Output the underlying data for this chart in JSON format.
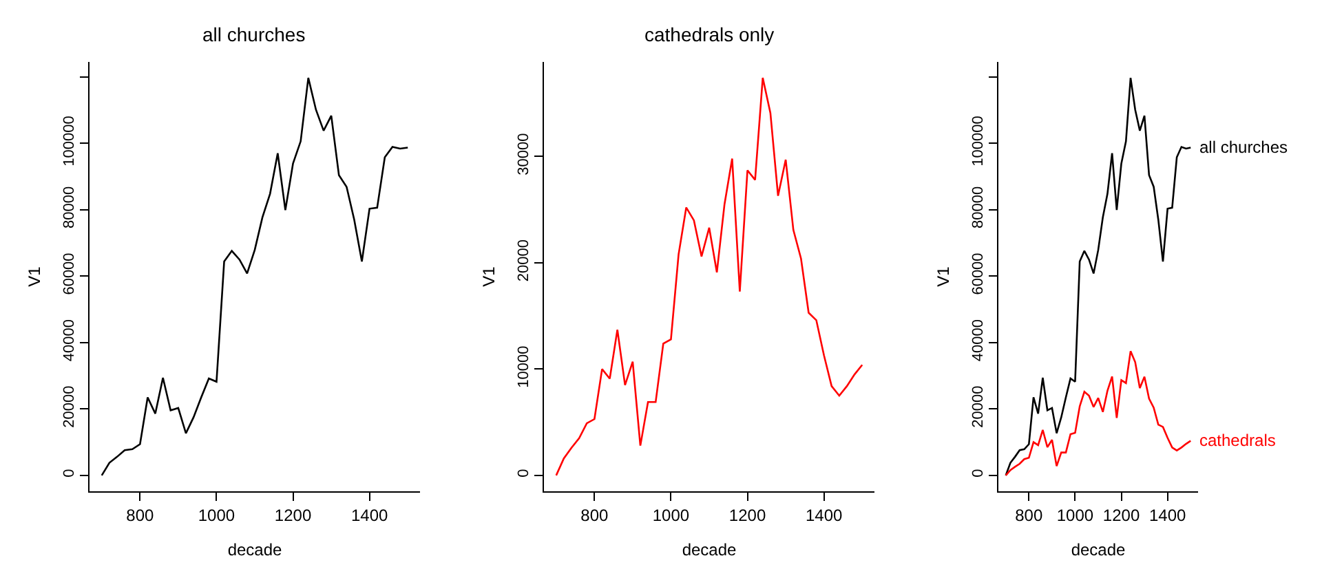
{
  "chart_data": [
    {
      "type": "line",
      "title": "all churches",
      "xlabel": "decade",
      "ylabel": "V1",
      "x": [
        700,
        720,
        740,
        760,
        780,
        800,
        820,
        840,
        860,
        880,
        900,
        920,
        940,
        960,
        980,
        1000,
        1020,
        1040,
        1060,
        1080,
        1100,
        1120,
        1140,
        1160,
        1180,
        1200,
        1220,
        1240,
        1260,
        1280,
        1300,
        1320,
        1340,
        1360,
        1380,
        1400,
        1420,
        1440,
        1460,
        1480,
        1500
      ],
      "series": [
        {
          "color": "#000000",
          "values": [
            0,
            3800,
            5600,
            7600,
            7900,
            9400,
            23500,
            18600,
            29400,
            19600,
            20300,
            12700,
            17500,
            23500,
            29200,
            28200,
            64400,
            67600,
            65000,
            60800,
            67900,
            77700,
            84800,
            97000,
            79900,
            93900,
            100600,
            119700,
            110100,
            103800,
            108300,
            90400,
            86900,
            77000,
            64400,
            80300,
            80600,
            95800,
            98900,
            98400,
            98700
          ]
        }
      ],
      "xlim": [
        668,
        1532
      ],
      "xticks": [
        800,
        1000,
        1200,
        1400
      ],
      "ylim": [
        -4788,
        124488
      ],
      "yticks": [
        0,
        20000,
        40000,
        60000,
        80000,
        100000,
        {
          "value": 120000,
          "label": null
        }
      ],
      "legend": false,
      "marker": "none",
      "line_style": "solid"
    },
    {
      "type": "line",
      "title": "cathedrals only",
      "xlabel": "decade",
      "ylabel": "V1",
      "x": [
        700,
        720,
        740,
        760,
        780,
        800,
        820,
        840,
        860,
        880,
        900,
        920,
        940,
        960,
        980,
        1000,
        1020,
        1040,
        1060,
        1080,
        1100,
        1120,
        1140,
        1160,
        1180,
        1200,
        1220,
        1240,
        1260,
        1280,
        1300,
        1320,
        1340,
        1360,
        1380,
        1400,
        1420,
        1440,
        1460,
        1480,
        1500
      ],
      "series": [
        {
          "color": "#ff0000",
          "values": [
            0,
            1600,
            2600,
            3500,
            4900,
            5300,
            10000,
            9100,
            13700,
            8500,
            10700,
            2800,
            6900,
            6900,
            12400,
            12800,
            20800,
            25200,
            24000,
            20600,
            23300,
            19100,
            25500,
            29800,
            17300,
            28700,
            27800,
            37400,
            34100,
            26300,
            29700,
            23100,
            20400,
            15300,
            14600,
            11300,
            8400,
            7500,
            8400,
            9500,
            10400
          ]
        }
      ],
      "xlim": [
        668,
        1532
      ],
      "xticks": [
        800,
        1000,
        1200,
        1400
      ],
      "ylim": [
        -1496,
        38896
      ],
      "yticks": [
        0,
        10000,
        20000,
        30000
      ],
      "legend": false,
      "marker": "none",
      "line_style": "solid"
    },
    {
      "type": "line",
      "xlabel": "decade",
      "ylabel": "V1",
      "x": [
        700,
        720,
        740,
        760,
        780,
        800,
        820,
        840,
        860,
        880,
        900,
        920,
        940,
        960,
        980,
        1000,
        1020,
        1040,
        1060,
        1080,
        1100,
        1120,
        1140,
        1160,
        1180,
        1200,
        1220,
        1240,
        1260,
        1280,
        1300,
        1320,
        1340,
        1360,
        1380,
        1400,
        1420,
        1440,
        1460,
        1480,
        1500
      ],
      "series": [
        {
          "name": "all churches",
          "color": "#000000",
          "values": [
            0,
            3800,
            5600,
            7600,
            7900,
            9400,
            23500,
            18600,
            29400,
            19600,
            20300,
            12700,
            17500,
            23500,
            29200,
            28200,
            64400,
            67600,
            65000,
            60800,
            67900,
            77700,
            84800,
            97000,
            79900,
            93900,
            100600,
            119700,
            110100,
            103800,
            108300,
            90400,
            86900,
            77000,
            64400,
            80300,
            80600,
            95800,
            98900,
            98400,
            98700
          ]
        },
        {
          "name": "cathedrals",
          "color": "#ff0000",
          "values": [
            0,
            1600,
            2600,
            3500,
            4900,
            5300,
            10000,
            9100,
            13700,
            8500,
            10700,
            2800,
            6900,
            6900,
            12400,
            12800,
            20800,
            25200,
            24000,
            20600,
            23300,
            19100,
            25500,
            29800,
            17300,
            28700,
            27800,
            37400,
            34100,
            26300,
            29700,
            23100,
            20400,
            15300,
            14600,
            11300,
            8400,
            7500,
            8400,
            9500,
            10400
          ]
        }
      ],
      "xlim": [
        668,
        1532
      ],
      "xticks": [
        800,
        1000,
        1200,
        1400
      ],
      "ylim": [
        -4788,
        124488
      ],
      "yticks": [
        0,
        20000,
        40000,
        60000,
        80000,
        100000,
        {
          "value": 120000,
          "label": null
        }
      ],
      "legend": false,
      "marker": "none",
      "line_style": "solid"
    }
  ]
}
